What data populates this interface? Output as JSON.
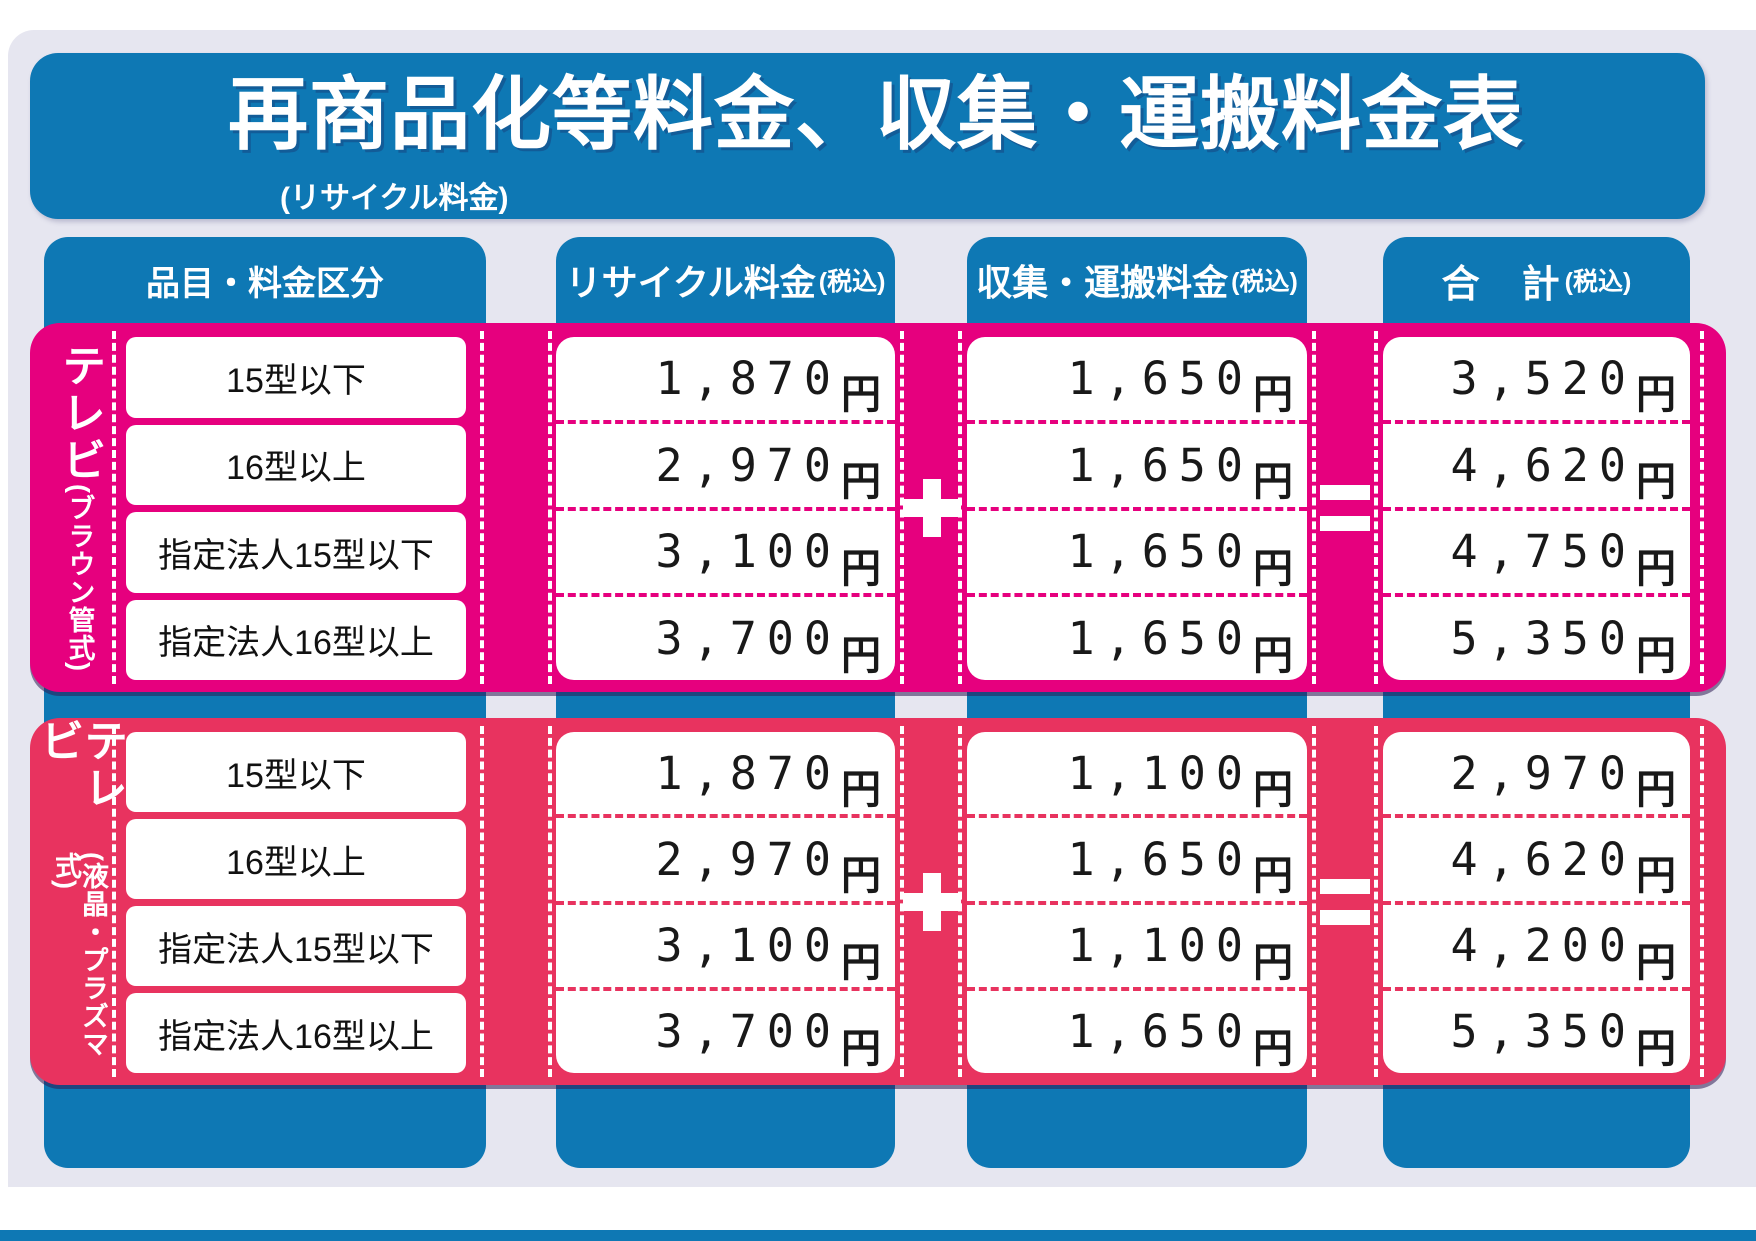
{
  "header": {
    "title": "再商品化等料金、収集・運搬料金表",
    "subtitle": "(リサイクル料金)"
  },
  "columns": {
    "category": {
      "label": "品目・料金区分"
    },
    "recycle": {
      "label": "リサイクル料金",
      "tax": "(税込)"
    },
    "collect": {
      "label": "収集・運搬料金",
      "tax": "(税込)"
    },
    "total": {
      "label": "合　計",
      "tax": "(税込)"
    }
  },
  "operators": {
    "plus": "+",
    "equals": "="
  },
  "yen": "円",
  "groups": [
    {
      "label_main": "テレビ",
      "label_sub": "(ブラウン管式)",
      "rows": [
        {
          "category": "15型以下",
          "recycle": "1,870",
          "collect": "1,650",
          "total": "3,520"
        },
        {
          "category": "16型以上",
          "recycle": "2,970",
          "collect": "1,650",
          "total": "4,620"
        },
        {
          "category": "指定法人15型以下",
          "recycle": "3,100",
          "collect": "1,650",
          "total": "4,750"
        },
        {
          "category": "指定法人16型以上",
          "recycle": "3,700",
          "collect": "1,650",
          "total": "5,350"
        }
      ]
    },
    {
      "label_main": "テレビ",
      "label_sub": "(液晶・プラズマ式)",
      "rows": [
        {
          "category": "15型以下",
          "recycle": "1,870",
          "collect": "1,100",
          "total": "2,970"
        },
        {
          "category": "16型以上",
          "recycle": "2,970",
          "collect": "1,650",
          "total": "4,620"
        },
        {
          "category": "指定法人15型以下",
          "recycle": "3,100",
          "collect": "1,100",
          "total": "4,200"
        },
        {
          "category": "指定法人16型以上",
          "recycle": "3,700",
          "collect": "1,650",
          "total": "5,350"
        }
      ]
    }
  ],
  "colors": {
    "blue": "#0e78b4",
    "magenta": "#e6007e",
    "crimson": "#e8335f",
    "panel_background": "#e6e6f0",
    "text": "#1a1a1a"
  }
}
